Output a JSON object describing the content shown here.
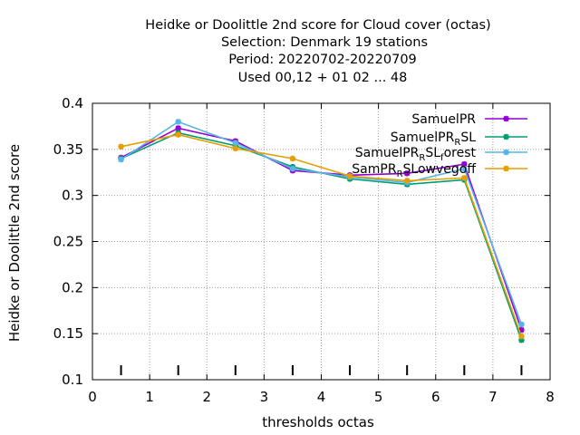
{
  "chart_data": {
    "type": "line",
    "title_lines": [
      "Heidke or Doolittle 2nd score  for Cloud cover (octas)",
      "Selection: Denmark     19 stations",
      "Period: 20220702-20220709",
      "Used  00,12  + 01 02 ... 48"
    ],
    "xlabel": "thresholds octas",
    "ylabel": "Heidke or Doolittle 2nd score",
    "xlim": [
      0,
      8
    ],
    "ylim": [
      0.1,
      0.4
    ],
    "xticks": [
      "0",
      "1",
      "2",
      "3",
      "4",
      "5",
      "6",
      "7",
      "8"
    ],
    "yticks": [
      "0.1",
      "0.15",
      "0.2",
      "0.25",
      "0.3",
      "0.35",
      "0.4"
    ],
    "x": [
      0.5,
      1.5,
      2.5,
      3.5,
      4.5,
      5.5,
      6.5,
      7.5
    ],
    "grid": true,
    "legend_position": "top-right",
    "series": [
      {
        "name": "SamuelPR",
        "legend_parts": [
          [
            "SamuelPR",
            ""
          ]
        ],
        "color": "#9400d3",
        "values": [
          0.341,
          0.373,
          0.359,
          0.327,
          0.322,
          0.324,
          0.334,
          0.154
        ]
      },
      {
        "name": "SamuelPR_R SL",
        "legend_parts": [
          [
            "SamuelPR",
            ""
          ],
          [
            "R",
            "sub"
          ],
          [
            "SL",
            ""
          ]
        ],
        "color": "#009e73",
        "values": [
          0.34,
          0.368,
          0.354,
          0.331,
          0.318,
          0.312,
          0.317,
          0.143
        ]
      },
      {
        "name": "SamuelPR_R SL_f orest",
        "legend_parts": [
          [
            "SamuelPR",
            ""
          ],
          [
            "R",
            "sub"
          ],
          [
            "SL",
            ""
          ],
          [
            "f",
            "sub"
          ],
          [
            "orest",
            ""
          ]
        ],
        "color": "#56b4e9",
        "values": [
          0.339,
          0.38,
          0.357,
          0.329,
          0.32,
          0.314,
          0.329,
          0.16
        ]
      },
      {
        "name": "SamPR_R SL_owvegoff",
        "legend_parts": [
          [
            "SamPR",
            ""
          ],
          [
            "R",
            "sub"
          ],
          [
            "SL",
            ""
          ],
          [
            "owvegoff",
            ""
          ]
        ],
        "color": "#e69f00",
        "values": [
          0.353,
          0.366,
          0.351,
          0.34,
          0.321,
          0.316,
          0.319,
          0.147
        ]
      }
    ],
    "bottom_marks_x": [
      0.5,
      1.5,
      2.5,
      3.5,
      4.5,
      5.5,
      6.5,
      7.5
    ]
  }
}
